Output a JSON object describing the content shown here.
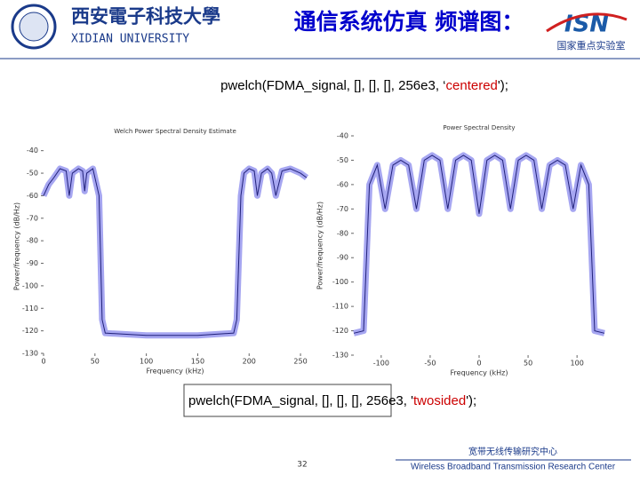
{
  "header": {
    "university_cn": "西安電子科技大學",
    "university_en": "XIDIAN UNIVERSITY",
    "title": "通信系统仿真 频谱图：",
    "lab_logo": "ISN",
    "lab_name": "国家重点实验室"
  },
  "command_top": {
    "before": "pwelch(FDMA_signal, [], [], [], 256e3, ‘",
    "option": "centered",
    "after": "');"
  },
  "command_bottom": {
    "before": "pwelch(FDMA_signal, [], [], [], 256e3, '",
    "option": "twosided",
    "after": "');"
  },
  "footer": {
    "page": "32",
    "center_cn": "宽带无线传输研究中心",
    "center_en": "Wireless Broadband Transmission Research Center"
  },
  "chart_data": [
    {
      "type": "line",
      "title": "Welch Power Spectral Density Estimate",
      "xlabel": "Frequency (kHz)",
      "ylabel": "Power/frequency (dB/Hz)",
      "xlim": [
        0,
        256
      ],
      "ylim": [
        -130,
        -35
      ],
      "xticks": [
        0,
        50,
        100,
        150,
        200,
        250
      ],
      "yticks": [
        -40,
        -50,
        -60,
        -70,
        -80,
        -90,
        -100,
        -110,
        -120,
        -130
      ],
      "x": [
        0,
        5,
        10,
        16,
        22,
        25,
        28,
        34,
        38,
        40,
        42,
        48,
        54,
        57,
        60,
        100,
        150,
        185,
        188,
        192,
        195,
        200,
        205,
        208,
        212,
        218,
        222,
        226,
        232,
        240,
        250,
        256
      ],
      "series": [
        {
          "color": "#6b6be8",
          "values": [
            -60,
            -55,
            -52,
            -48,
            -49,
            -60,
            -50,
            -48,
            -49,
            -58,
            -50,
            -48,
            -60,
            -115,
            -121,
            -122,
            -122,
            -121,
            -115,
            -60,
            -50,
            -48,
            -49,
            -60,
            -50,
            -48,
            -50,
            -60,
            -49,
            -48,
            -50,
            -52
          ]
        }
      ]
    },
    {
      "type": "line",
      "title": "Power Spectral Density",
      "xlabel": "Frequency (kHz)",
      "ylabel": "Power/frequency (dB/Hz)",
      "xlim": [
        -128,
        128
      ],
      "ylim": [
        -130,
        -40
      ],
      "xticks": [
        -100,
        -50,
        0,
        50,
        100
      ],
      "yticks": [
        -40,
        -50,
        -60,
        -70,
        -80,
        -90,
        -100,
        -110,
        -120,
        -130
      ],
      "x": [
        -128,
        -118,
        -112,
        -104,
        -96,
        -88,
        -80,
        -72,
        -64,
        -56,
        -48,
        -40,
        -32,
        -24,
        -16,
        -8,
        0,
        8,
        16,
        24,
        32,
        40,
        48,
        56,
        64,
        72,
        80,
        88,
        96,
        104,
        112,
        118,
        128
      ],
      "series": [
        {
          "color": "#6b6be8",
          "values": [
            -121,
            -120,
            -60,
            -52,
            -70,
            -52,
            -50,
            -52,
            -70,
            -50,
            -48,
            -50,
            -70,
            -50,
            -48,
            -50,
            -72,
            -50,
            -48,
            -50,
            -70,
            -50,
            -48,
            -50,
            -70,
            -52,
            -50,
            -52,
            -70,
            -52,
            -60,
            -120,
            -121
          ]
        }
      ]
    }
  ]
}
